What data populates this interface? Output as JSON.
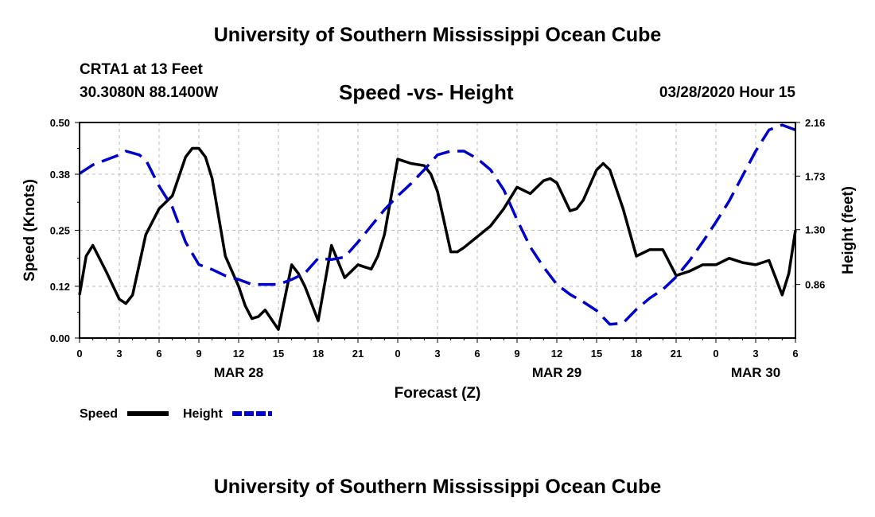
{
  "header": {
    "title": "University of Southern Mississippi Ocean Cube",
    "station": "CRTA1 at 13 Feet",
    "coordinates": "30.3080N 88.1400W",
    "chart_title": "Speed -vs- Height",
    "datetime": "03/28/2020 Hour 15"
  },
  "footer": {
    "title": "University of Southern Mississippi Ocean Cube"
  },
  "colors": {
    "speed": "#000000",
    "height": "#0000cc",
    "grid": "#bbbbbb"
  },
  "chart_data": {
    "type": "line",
    "title": "Speed -vs- Height",
    "xlabel": "Forecast (Z)",
    "ylabel": "Speed (Knots)",
    "y2label": "Height (feet)",
    "x_range": [
      0,
      54
    ],
    "ylim": [
      0,
      0.5
    ],
    "y2lim": [
      0.43,
      2.16
    ],
    "x_ticks": [
      0,
      3,
      6,
      9,
      12,
      15,
      18,
      21,
      24,
      27,
      30,
      33,
      36,
      39,
      42,
      45,
      48,
      51,
      54
    ],
    "x_tick_labels": [
      "0",
      "3",
      "6",
      "9",
      "12",
      "15",
      "18",
      "21",
      "0",
      "3",
      "6",
      "9",
      "12",
      "15",
      "18",
      "21",
      "0",
      "3",
      "6"
    ],
    "y_ticks": [
      0,
      0.12,
      0.25,
      0.38,
      0.5
    ],
    "y_tick_labels": [
      "0.00",
      "0.12",
      "0.25",
      "0.38",
      "0.50"
    ],
    "y2_ticks": [
      0.86,
      1.3,
      1.73,
      2.16
    ],
    "y2_tick_labels": [
      "0.86",
      "1.30",
      "1.73",
      "2.16"
    ],
    "date_labels": [
      {
        "x": 12,
        "label": "MAR 28"
      },
      {
        "x": 36,
        "label": "MAR 29"
      },
      {
        "x": 51,
        "label": "MAR 30"
      }
    ],
    "grid": true,
    "legend": {
      "position": "bottom-left",
      "items": [
        "Speed",
        "Height"
      ]
    },
    "series": [
      {
        "name": "Speed",
        "axis": "left",
        "style": "solid",
        "x": [
          0,
          0.5,
          1,
          2,
          3,
          3.5,
          4,
          5,
          6,
          7,
          8,
          8.5,
          9,
          9.5,
          10,
          11,
          12,
          12.5,
          13,
          13.5,
          14,
          15,
          16,
          16.5,
          17,
          18,
          19,
          20,
          21,
          22,
          22.5,
          23,
          24,
          25,
          26,
          26.5,
          27,
          28,
          28.5,
          29,
          30,
          31,
          32,
          33,
          34,
          34.5,
          35,
          35.5,
          36,
          37,
          37.5,
          38,
          39,
          39.5,
          40,
          41,
          42,
          43,
          44,
          45,
          46,
          47,
          48,
          49,
          50,
          51,
          52,
          53,
          53.5,
          54
        ],
        "y": [
          0.1,
          0.19,
          0.215,
          0.155,
          0.09,
          0.08,
          0.1,
          0.24,
          0.3,
          0.33,
          0.42,
          0.44,
          0.44,
          0.42,
          0.37,
          0.19,
          0.12,
          0.075,
          0.045,
          0.05,
          0.065,
          0.02,
          0.17,
          0.15,
          0.12,
          0.04,
          0.215,
          0.14,
          0.17,
          0.16,
          0.19,
          0.24,
          0.415,
          0.405,
          0.4,
          0.38,
          0.34,
          0.2,
          0.2,
          0.21,
          0.235,
          0.26,
          0.3,
          0.35,
          0.335,
          0.35,
          0.365,
          0.37,
          0.36,
          0.295,
          0.3,
          0.32,
          0.39,
          0.405,
          0.39,
          0.3,
          0.19,
          0.205,
          0.205,
          0.145,
          0.155,
          0.17,
          0.17,
          0.185,
          0.175,
          0.17,
          0.18,
          0.1,
          0.15,
          0.25
        ]
      },
      {
        "name": "Height",
        "axis": "right",
        "style": "dashed",
        "x": [
          0,
          1,
          2,
          3,
          3.5,
          4.5,
          5,
          6,
          7,
          8,
          9,
          10,
          11,
          12,
          13,
          14,
          15,
          16,
          17,
          18,
          19,
          20,
          21,
          22,
          23,
          24,
          25,
          26,
          27,
          28,
          29,
          30,
          31,
          32,
          33,
          34,
          35,
          36,
          37,
          38,
          39,
          40,
          41,
          42,
          43,
          44,
          45,
          46,
          47,
          48,
          49,
          50,
          51,
          52,
          53,
          54
        ],
        "y": [
          1.75,
          1.82,
          1.86,
          1.9,
          1.93,
          1.9,
          1.86,
          1.65,
          1.48,
          1.2,
          1.02,
          0.98,
          0.93,
          0.9,
          0.86,
          0.86,
          0.86,
          0.9,
          0.95,
          1.07,
          1.06,
          1.08,
          1.2,
          1.33,
          1.46,
          1.57,
          1.67,
          1.78,
          1.9,
          1.93,
          1.93,
          1.87,
          1.78,
          1.62,
          1.38,
          1.16,
          1.0,
          0.86,
          0.78,
          0.72,
          0.65,
          0.54,
          0.55,
          0.66,
          0.75,
          0.82,
          0.92,
          1.05,
          1.2,
          1.36,
          1.53,
          1.73,
          1.93,
          2.1,
          2.14,
          2.1
        ]
      }
    ]
  }
}
